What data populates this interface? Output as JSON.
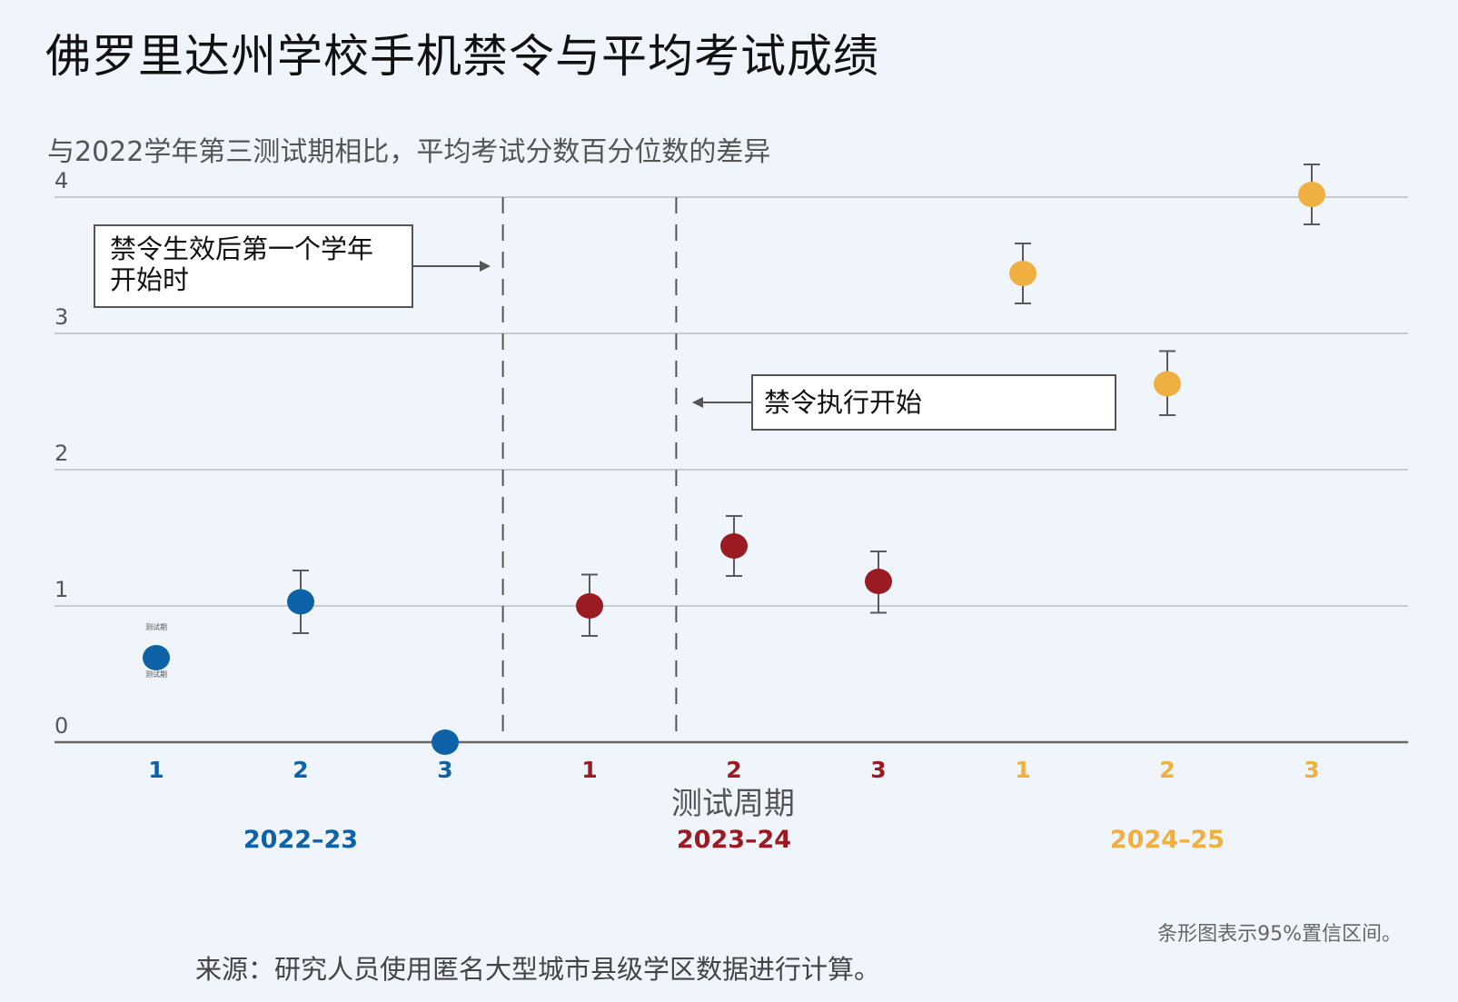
{
  "title": "佛罗里达州学校手机禁令与平均考试成绩",
  "subtitle": "与2022学年第三测试期相比，平均考试分数百分位数的差异",
  "callouts": {
    "school_year_start": "禁令生效后第一个学年开始时",
    "enforcement_start": "禁令执行开始"
  },
  "note": "条形图表示95%置信区间。",
  "source": "来源：研究人员使用匿名大型城市县级学区数据进行计算。",
  "point_tiny_label": "测试期",
  "colors": {
    "2022-23": "#0e62a8",
    "2023-24": "#9b1b23",
    "2024-25": "#f0b041",
    "grid": "#c7ccd2",
    "axis": "#666666",
    "error_bar": "#5a5a5a",
    "divider": "#555555"
  },
  "chart_data": {
    "type": "scatter",
    "title": "佛罗里达州学校手机禁令与平均考试成绩",
    "subtitle": "与2022学年第三测试期相比，平均考试分数百分位数的差异",
    "xlabel": "测试周期",
    "ylabel": "",
    "ylim": [
      0,
      4
    ],
    "yticks": [
      0,
      1,
      2,
      3,
      4
    ],
    "grid": true,
    "error_bars": "95% confidence interval",
    "series": [
      {
        "name": "2022–23",
        "color": "#0e62a8",
        "x": [
          "1",
          "2",
          "3"
        ],
        "y": [
          0.62,
          1.03,
          0.0
        ],
        "ci_low": [
          0.62,
          0.8,
          0.0
        ],
        "ci_high": [
          0.62,
          1.26,
          0.0
        ]
      },
      {
        "name": "2023–24",
        "color": "#9b1b23",
        "x": [
          "1",
          "2",
          "3"
        ],
        "y": [
          1.0,
          1.44,
          1.18
        ],
        "ci_low": [
          0.78,
          1.22,
          0.95
        ],
        "ci_high": [
          1.23,
          1.66,
          1.4
        ]
      },
      {
        "name": "2024–25",
        "color": "#f0b041",
        "x": [
          "1",
          "2",
          "3"
        ],
        "y": [
          3.44,
          2.63,
          4.02
        ],
        "ci_low": [
          3.22,
          2.4,
          3.8
        ],
        "ci_high": [
          3.66,
          2.87,
          4.24
        ]
      }
    ],
    "dividers": [
      {
        "after_index": 2.4,
        "label": "禁令生效后第一个学年开始时"
      },
      {
        "after_index": 3.6,
        "label": "禁令执行开始"
      }
    ]
  }
}
